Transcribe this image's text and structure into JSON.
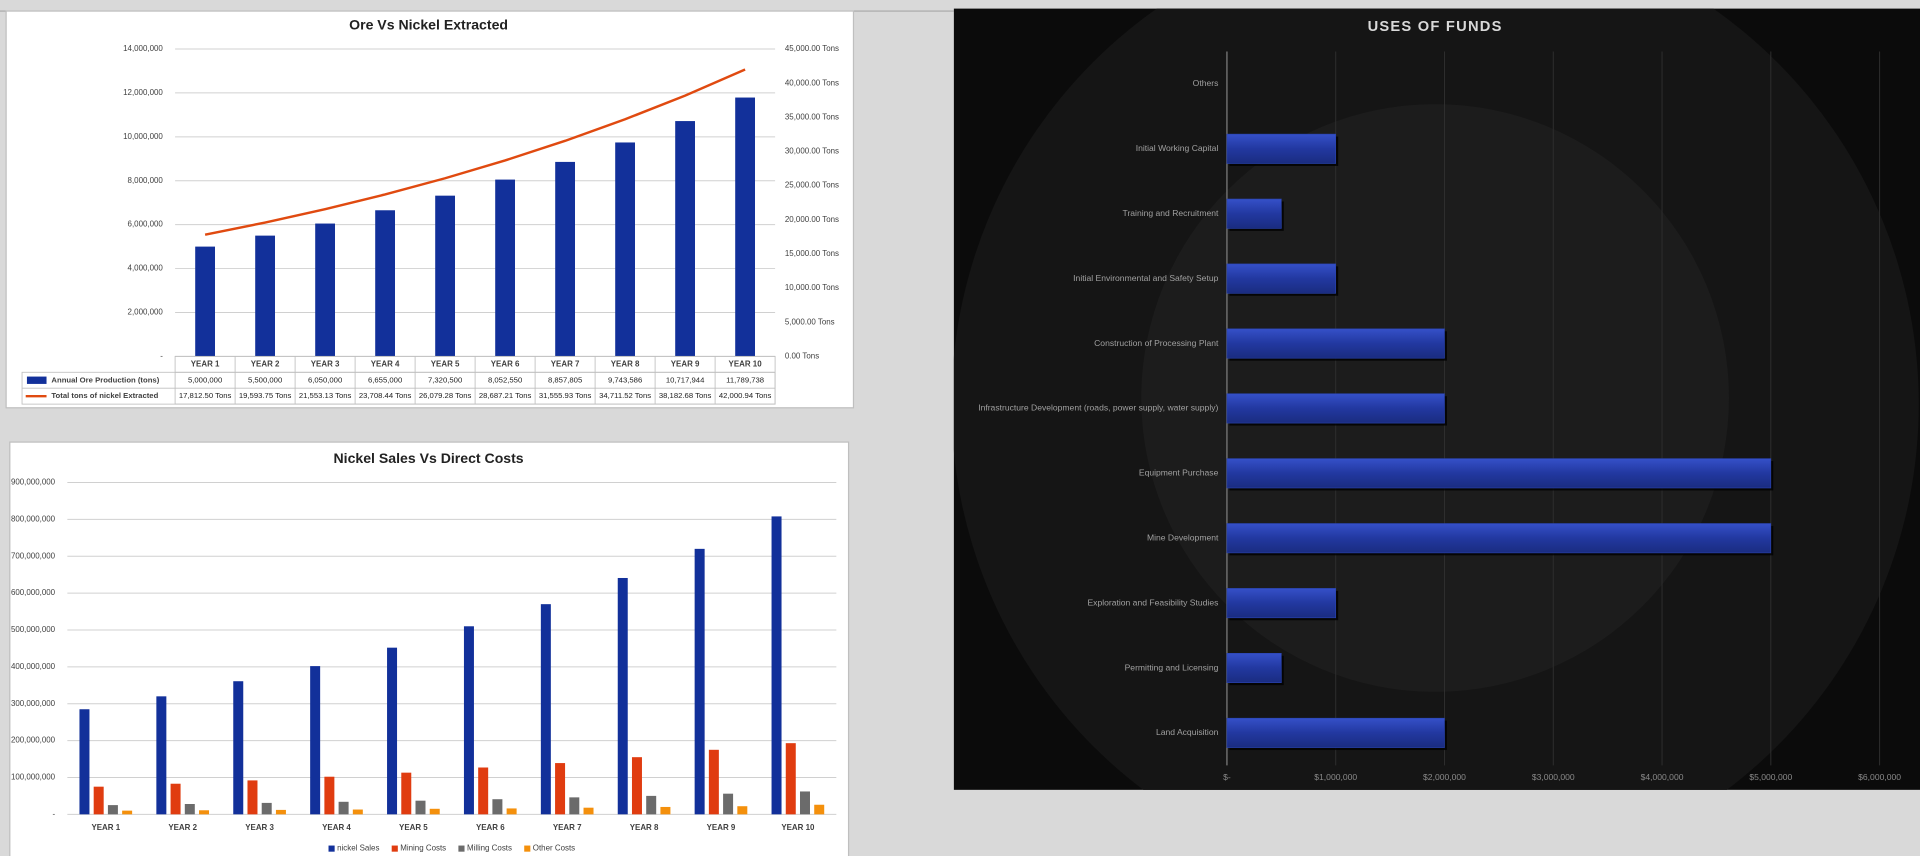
{
  "chart_data": [
    {
      "type": "combo",
      "title": "Ore Vs  Nickel Extracted",
      "categories": [
        "YEAR 1",
        "YEAR 2",
        "YEAR 3",
        "YEAR 4",
        "YEAR 5",
        "YEAR 6",
        "YEAR 7",
        "YEAR 8",
        "YEAR 9",
        "YEAR 10"
      ],
      "series": [
        {
          "name": "Annual Ore Production (tons)",
          "type": "bar",
          "color": "#12309a",
          "values": [
            5000000,
            5500000,
            6050000,
            6655000,
            7320500,
            8052550,
            8857805,
            9743586,
            10717944,
            11789738
          ],
          "value_labels": [
            "5,000,000",
            "5,500,000",
            "6,050,000",
            "6,655,000",
            "7,320,500",
            "8,052,550",
            "8,857,805",
            "9,743,586",
            "10,717,944",
            "11,789,738"
          ]
        },
        {
          "name": "Total tons of nickel Extracted",
          "type": "line",
          "axis": "y2",
          "color": "#e04a10",
          "values": [
            17812.5,
            19593.75,
            21553.13,
            23708.44,
            26079.28,
            28687.21,
            31555.93,
            34711.52,
            38182.68,
            42000.94
          ],
          "value_labels": [
            "17,812.50 Tons",
            "19,593.75 Tons",
            "21,553.13 Tons",
            "23,708.44 Tons",
            "26,079.28 Tons",
            "28,687.21 Tons",
            "31,555.93 Tons",
            "34,711.52 Tons",
            "38,182.68 Tons",
            "42,000.94 Tons"
          ]
        }
      ],
      "ylim": [
        0,
        14000000
      ],
      "yticks": [
        {
          "value": 0,
          "label": "-"
        },
        {
          "value": 2000000,
          "label": "2,000,000"
        },
        {
          "value": 4000000,
          "label": "4,000,000"
        },
        {
          "value": 6000000,
          "label": "6,000,000"
        },
        {
          "value": 8000000,
          "label": "8,000,000"
        },
        {
          "value": 10000000,
          "label": "10,000,000"
        },
        {
          "value": 12000000,
          "label": "12,000,000"
        },
        {
          "value": 14000000,
          "label": "14,000,000"
        }
      ],
      "y2lim": [
        0,
        45000
      ],
      "y2ticks": [
        {
          "value": 0,
          "label": "0.00 Tons"
        },
        {
          "value": 5000,
          "label": "5,000.00 Tons"
        },
        {
          "value": 10000,
          "label": "10,000.00 Tons"
        },
        {
          "value": 15000,
          "label": "15,000.00 Tons"
        },
        {
          "value": 20000,
          "label": "20,000.00 Tons"
        },
        {
          "value": 25000,
          "label": "25,000.00 Tons"
        },
        {
          "value": 30000,
          "label": "30,000.00 Tons"
        },
        {
          "value": 35000,
          "label": "35,000.00 Tons"
        },
        {
          "value": 40000,
          "label": "40,000.00 Tons"
        },
        {
          "value": 45000,
          "label": "45,000.00 Tons"
        }
      ],
      "grid": true,
      "data_table": true
    },
    {
      "type": "bar",
      "title": "Nickel Sales Vs Direct Costs",
      "categories": [
        "YEAR 1",
        "YEAR 2",
        "YEAR 3",
        "YEAR 4",
        "YEAR 5",
        "YEAR 6",
        "YEAR 7",
        "YEAR 8",
        "YEAR 9",
        "YEAR 10"
      ],
      "series": [
        {
          "name": "nickel Sales",
          "color": "#12309a",
          "values": [
            285000000,
            320000000,
            361000000,
            402000000,
            452000000,
            510000000,
            570000000,
            641000000,
            720000000,
            808000000
          ]
        },
        {
          "name": "Mining Costs",
          "color": "#e03c10",
          "values": [
            75000000,
            83000000,
            92000000,
            102000000,
            113000000,
            127000000,
            139000000,
            155000000,
            175000000,
            193000000
          ]
        },
        {
          "name": "Milling Costs",
          "color": "#6b6b6b",
          "values": [
            25000000,
            28000000,
            31000000,
            34000000,
            37000000,
            41000000,
            46000000,
            50000000,
            56000000,
            62000000
          ]
        },
        {
          "name": "Other Costs",
          "color": "#f4900c",
          "values": [
            10000000,
            11000000,
            12000000,
            13000000,
            15000000,
            16000000,
            18000000,
            20000000,
            22000000,
            26000000
          ]
        }
      ],
      "ylim": [
        0,
        900000000
      ],
      "yticks": [
        {
          "value": 0,
          "label": "-"
        },
        {
          "value": 100000000,
          "label": "100,000,000"
        },
        {
          "value": 200000000,
          "label": "200,000,000"
        },
        {
          "value": 300000000,
          "label": "300,000,000"
        },
        {
          "value": 400000000,
          "label": "400,000,000"
        },
        {
          "value": 500000000,
          "label": "500,000,000"
        },
        {
          "value": 600000000,
          "label": "600,000,000"
        },
        {
          "value": 700000000,
          "label": "700,000,000"
        },
        {
          "value": 800000000,
          "label": "800,000,000"
        },
        {
          "value": 900000000,
          "label": "900,000,000"
        }
      ],
      "grid": true,
      "legend": "bottom"
    },
    {
      "type": "barh",
      "title": "USES OF FUNDS",
      "categories": [
        "Others",
        "Initial Working Capital",
        "Training and Recruitment",
        "Initial Environmental and Safety Setup",
        "Construction of Processing Plant",
        "Infrastructure Development (roads, power supply, water supply)",
        "Equipment Purchase",
        "Mine Development",
        "Exploration and Feasibility Studies",
        "Permitting and Licensing",
        "Land Acquisition"
      ],
      "values": [
        0,
        1000000,
        500000,
        1000000,
        2000000,
        2000000,
        5000000,
        5000000,
        1000000,
        500000,
        2000000
      ],
      "color": "#2a44b0",
      "xlim": [
        0,
        6000000
      ],
      "xticks": [
        {
          "value": 0,
          "label": "$-"
        },
        {
          "value": 1000000,
          "label": "$1,000,000"
        },
        {
          "value": 2000000,
          "label": "$2,000,000"
        },
        {
          "value": 3000000,
          "label": "$3,000,000"
        },
        {
          "value": 4000000,
          "label": "$4,000,000"
        },
        {
          "value": 5000000,
          "label": "$5,000,000"
        },
        {
          "value": 6000000,
          "label": "$6,000,000"
        }
      ],
      "grid": true
    }
  ]
}
